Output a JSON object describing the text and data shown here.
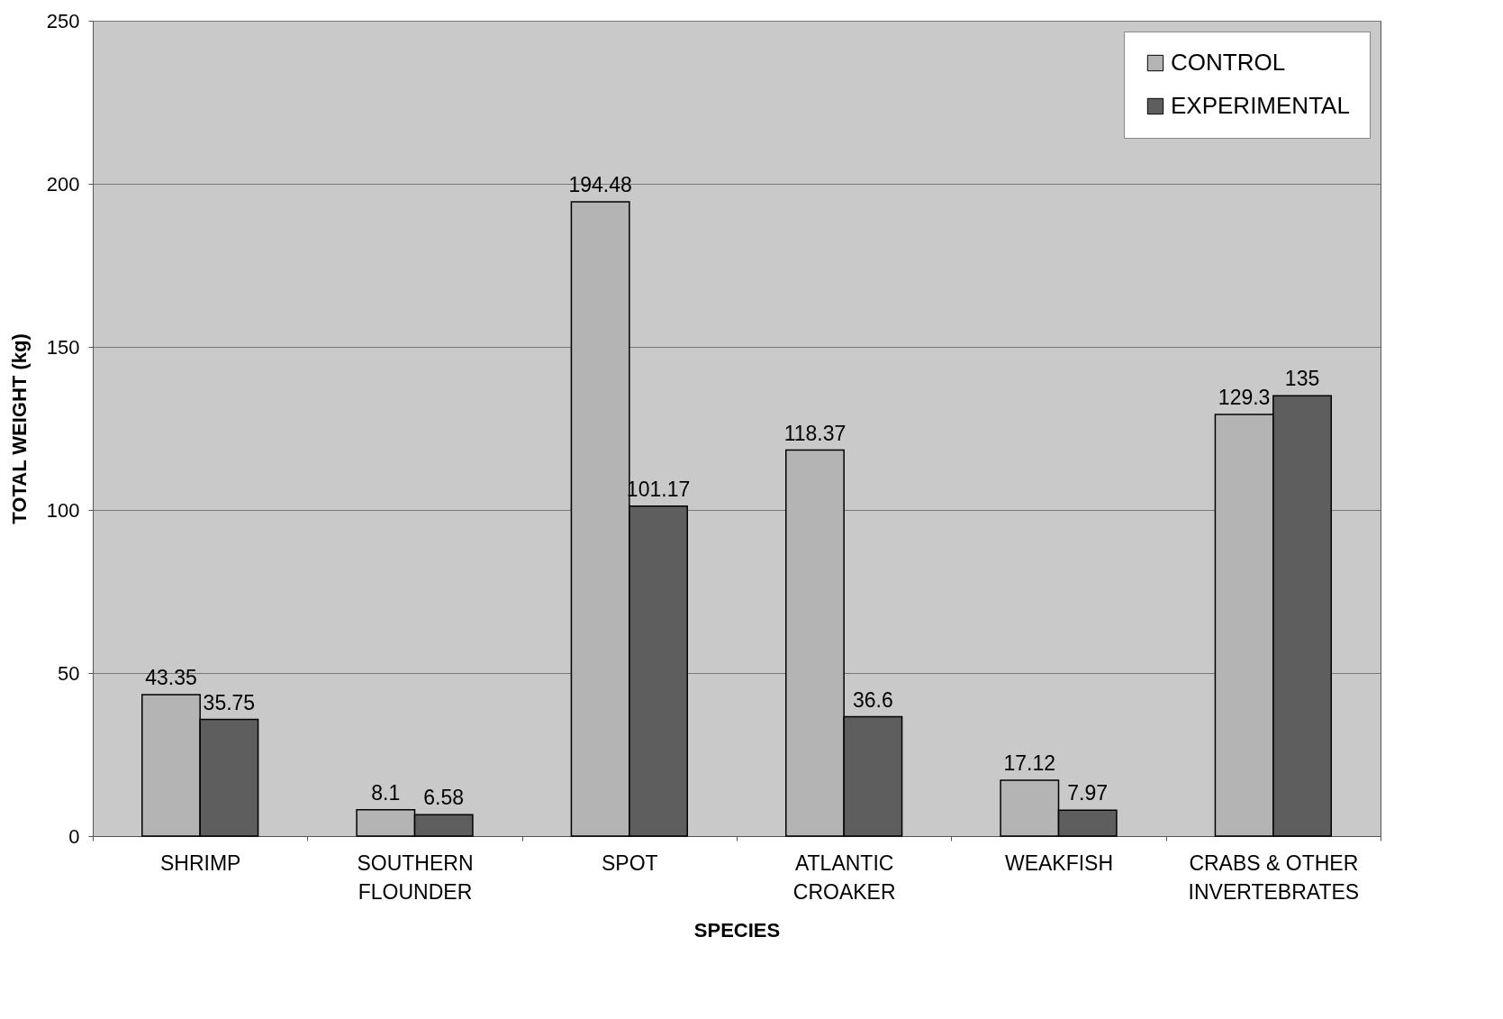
{
  "chart_data": {
    "type": "bar",
    "xlabel": "SPECIES",
    "ylabel": "TOTAL WEIGHT (kg)",
    "categories": [
      "SHRIMP",
      "SOUTHERN\nFLOUNDER",
      "SPOT",
      "ATLANTIC\nCROAKER",
      "WEAKFISH",
      "CRABS & OTHER\nINVERTEBRATES"
    ],
    "series": [
      {
        "name": "CONTROL",
        "color": "#b4b4b4",
        "values": [
          43.35,
          8.1,
          194.48,
          118.37,
          17.12,
          129.3
        ]
      },
      {
        "name": "EXPERIMENTAL",
        "color": "#5e5e5e",
        "values": [
          35.75,
          6.58,
          101.17,
          36.6,
          7.97,
          135
        ]
      }
    ],
    "ylim": [
      0,
      250
    ],
    "yticks": [
      0,
      50,
      100,
      150,
      200,
      250
    ],
    "grid": "y",
    "legend": "top right",
    "data_labels": true
  }
}
